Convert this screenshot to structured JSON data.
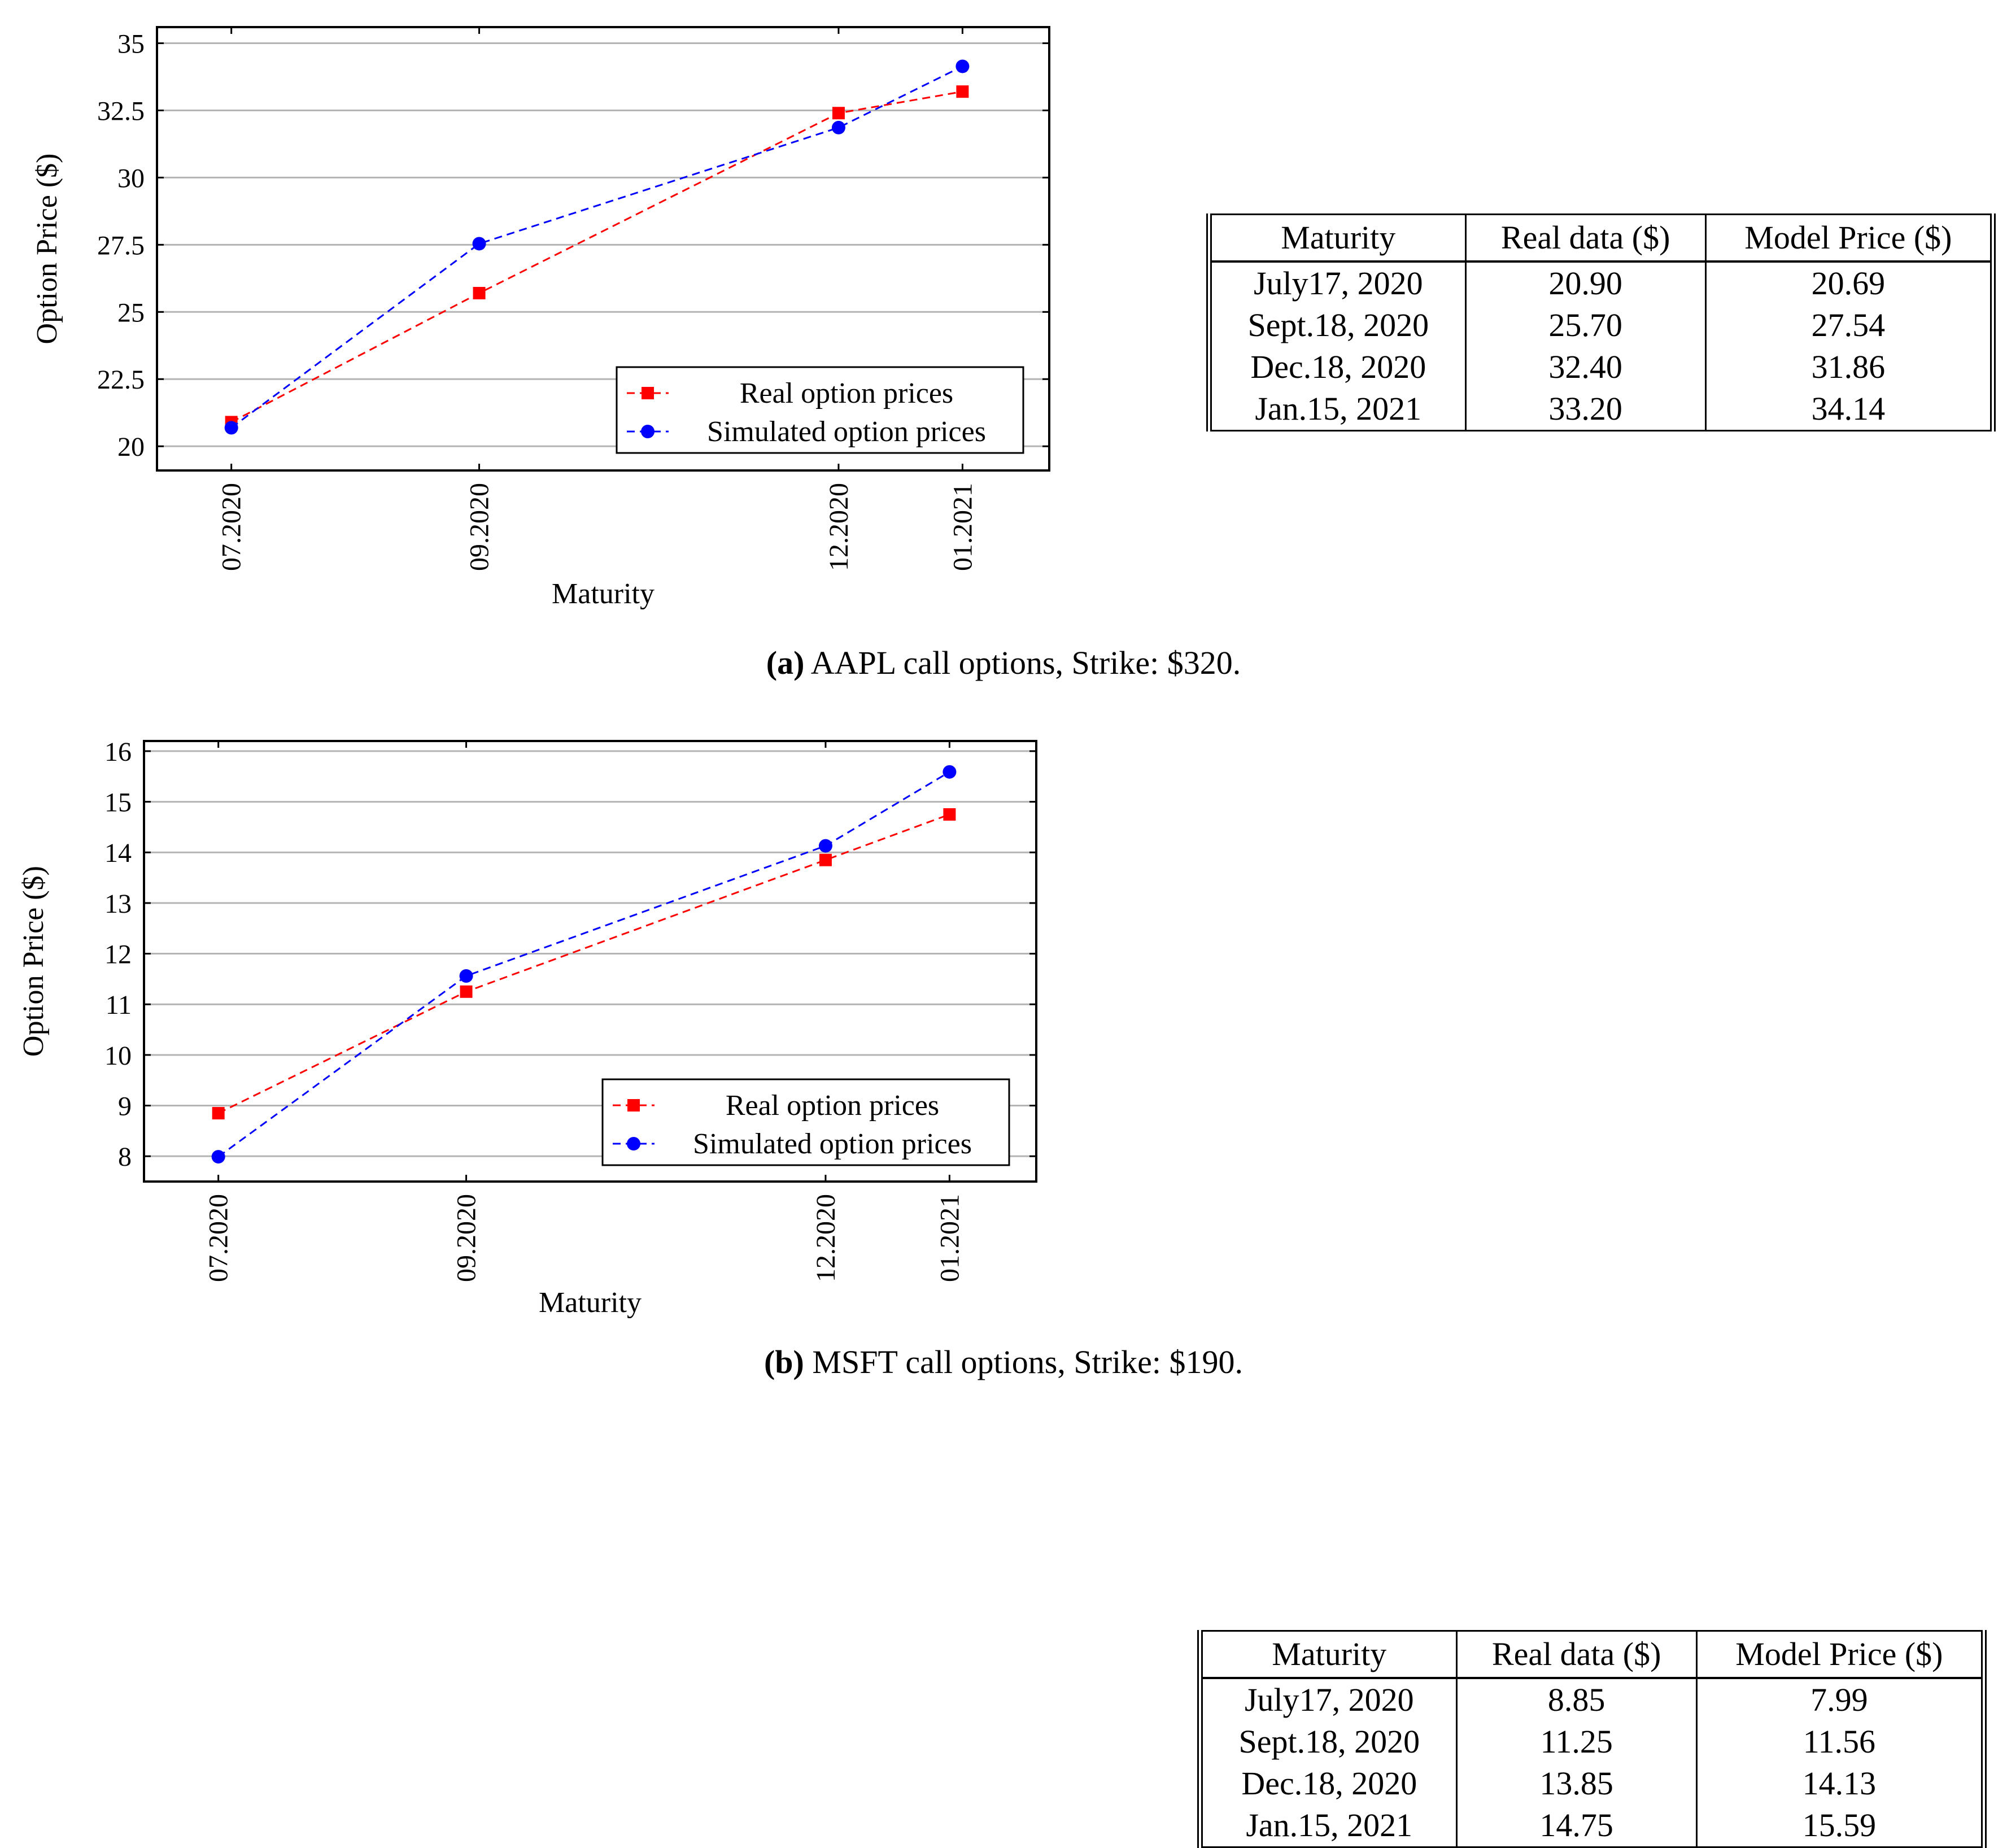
{
  "chart_data": [
    {
      "type": "line",
      "title": "",
      "xlabel": "Maturity",
      "ylabel": "Option Price ($)",
      "x": [
        0,
        1,
        2.45,
        2.95
      ],
      "categories": [
        "07.2020",
        "09.2020",
        "12.2020",
        "01.2021"
      ],
      "xlim": [
        -0.3,
        3.3
      ],
      "ylim": [
        19.1,
        35.6
      ],
      "yticks": [
        20,
        22.5,
        25,
        27.5,
        30,
        32.5,
        35
      ],
      "ytick_labels": [
        "20",
        "22.5",
        "25",
        "27.5",
        "30",
        "32.5",
        "35"
      ],
      "grid": "horizontal",
      "legend_position": "bottom-right",
      "series": [
        {
          "name": "Real option prices",
          "color": "#ff0000",
          "marker": "square",
          "style": "dashed",
          "values": [
            20.9,
            25.7,
            32.4,
            33.2
          ]
        },
        {
          "name": "Simulated option prices",
          "color": "#0000ff",
          "marker": "circle",
          "style": "dashed",
          "values": [
            20.69,
            27.54,
            31.86,
            34.14
          ]
        }
      ]
    },
    {
      "type": "line",
      "title": "",
      "xlabel": "Maturity",
      "ylabel": "Option Price ($)",
      "x": [
        0,
        1,
        2.45,
        2.95
      ],
      "categories": [
        "07.2020",
        "09.2020",
        "12.2020",
        "01.2021"
      ],
      "xlim": [
        -0.3,
        3.3
      ],
      "ylim": [
        7.5,
        16.2
      ],
      "yticks": [
        8,
        9,
        10,
        11,
        12,
        13,
        14,
        15,
        16
      ],
      "ytick_labels": [
        "8",
        "9",
        "10",
        "11",
        "12",
        "13",
        "14",
        "15",
        "16"
      ],
      "grid": "horizontal",
      "legend_position": "bottom-right",
      "series": [
        {
          "name": "Real option prices",
          "color": "#ff0000",
          "marker": "square",
          "style": "dashed",
          "values": [
            8.85,
            11.25,
            13.85,
            14.75
          ]
        },
        {
          "name": "Simulated option prices",
          "color": "#0000ff",
          "marker": "circle",
          "style": "dashed",
          "values": [
            7.99,
            11.56,
            14.13,
            15.59
          ]
        }
      ]
    }
  ],
  "tables": {
    "a": {
      "headers": [
        "Maturity",
        "Real data ($)",
        "Model Price ($)"
      ],
      "rows": [
        [
          "July17, 2020",
          "20.90",
          "20.69"
        ],
        [
          "Sept.18, 2020",
          "25.70",
          "27.54"
        ],
        [
          "Dec.18, 2020",
          "32.40",
          "31.86"
        ],
        [
          "Jan.15, 2021",
          "33.20",
          "34.14"
        ]
      ]
    },
    "b": {
      "headers": [
        "Maturity",
        "Real data ($)",
        "Model Price ($)"
      ],
      "rows": [
        [
          "July17, 2020",
          "8.85",
          "7.99"
        ],
        [
          "Sept.18, 2020",
          "11.25",
          "11.56"
        ],
        [
          "Dec.18, 2020",
          "13.85",
          "14.13"
        ],
        [
          "Jan.15, 2021",
          "14.75",
          "15.59"
        ]
      ]
    }
  },
  "captions": {
    "a": {
      "label": "(a)",
      "text": "AAPL call options, Strike: $320."
    },
    "b": {
      "label": "(b)",
      "text": "MSFT call options, Strike: $190."
    }
  }
}
